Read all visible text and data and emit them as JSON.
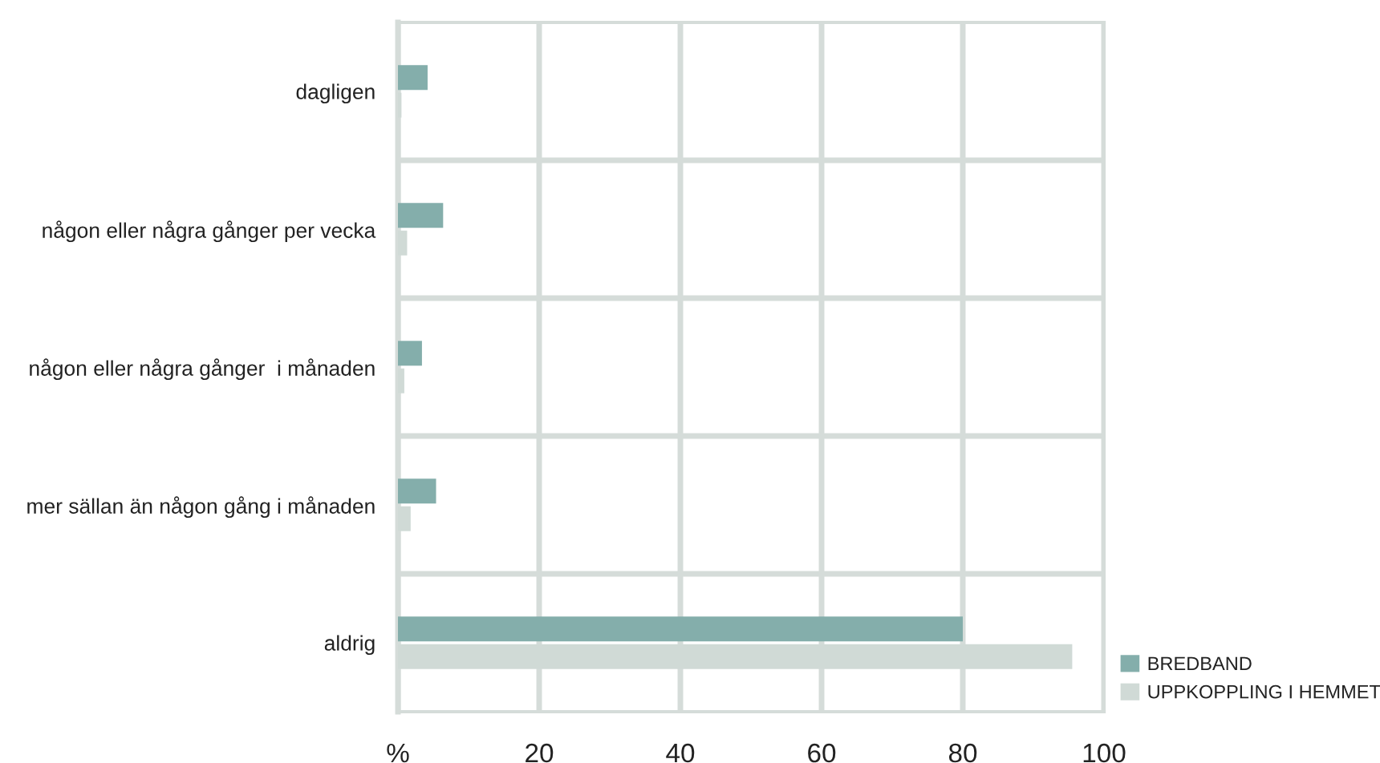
{
  "chart_data": {
    "type": "bar",
    "orientation": "horizontal",
    "categories": [
      "dagligen",
      "någon eller några gånger per vecka",
      "någon eller några gånger  i månaden",
      "mer sällan än någon gång i månaden",
      "aldrig"
    ],
    "series": [
      {
        "name": "BREDBAND",
        "color": "#84aeab",
        "values": [
          4.2,
          6.4,
          3.4,
          5.4,
          80
        ]
      },
      {
        "name": "UPPKOPPLING I HEMMET",
        "color": "#d0dad6",
        "values": [
          0.5,
          1.3,
          0.9,
          1.8,
          95.5
        ]
      }
    ],
    "xlim": [
      0,
      100
    ],
    "xticks": [
      {
        "value": 0,
        "label": "%"
      },
      20,
      40,
      60,
      80,
      100
    ],
    "grid": true,
    "legend": "right"
  }
}
